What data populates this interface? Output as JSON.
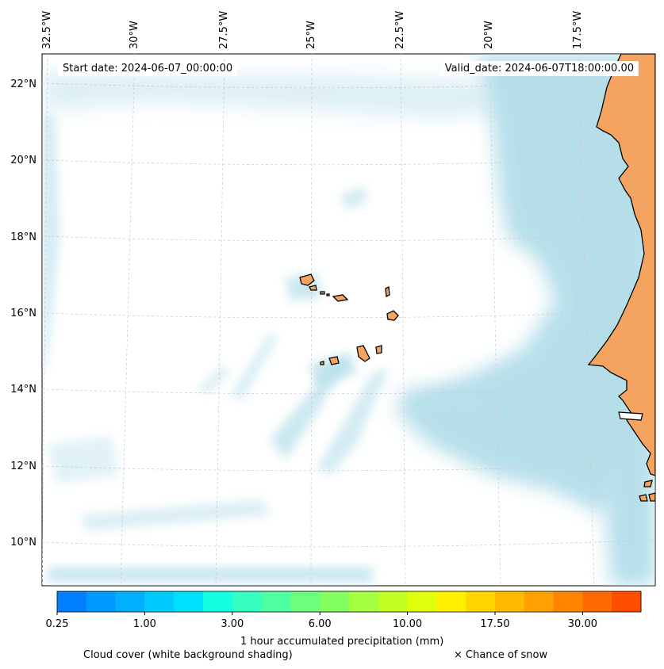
{
  "map": {
    "start_date": "Start date: 2024-06-07_00:00:00",
    "valid_date": "Valid_date: 2024-06-07T18:00:00.00",
    "lon_labels": [
      "32.5°W",
      "30°W",
      "27.5°W",
      "25°W",
      "22.5°W",
      "20°W",
      "17.5°W"
    ],
    "lat_labels": [
      "22°N",
      "20°N",
      "18°N",
      "16°N",
      "14°N",
      "12°N",
      "10°N"
    ],
    "colors": {
      "ocean": "#ffffff",
      "cloud": "#a9d9e6",
      "land": "#f4a460",
      "coastline": "#000000",
      "gridline": "#c8c8c8"
    },
    "features": [
      "Cabo Verde islands",
      "West African coast"
    ]
  },
  "colorbar": {
    "title": "1 hour accumulated precipitation (mm)",
    "tick_labels": [
      "0.25",
      "1.00",
      "3.00",
      "6.00",
      "10.00",
      "17.50",
      "30.00"
    ],
    "colors": [
      "#0080ff",
      "#0099ff",
      "#00b0ff",
      "#00cbff",
      "#00e1ff",
      "#14ffe1",
      "#36ffc1",
      "#4eff9f",
      "#6cff7c",
      "#84ff62",
      "#a6ff41",
      "#c3ff22",
      "#e1ff0c",
      "#fff000",
      "#ffd500",
      "#ffba00",
      "#ff9f00",
      "#ff8400",
      "#ff6a00",
      "#ff4d00"
    ]
  },
  "legend": {
    "cloud_cover": "Cloud cover (white background shading)",
    "snow": "× Chance of snow"
  }
}
